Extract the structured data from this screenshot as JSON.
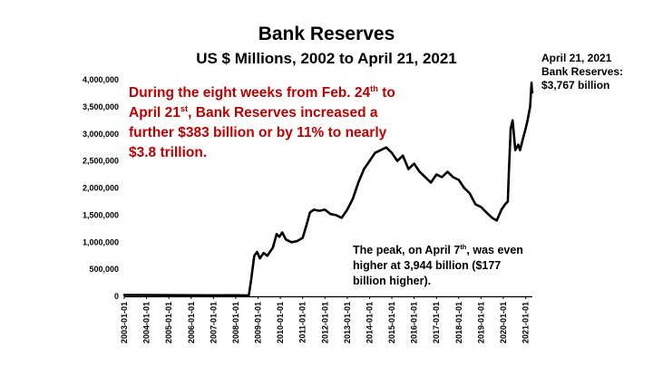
{
  "title": "Bank Reserves",
  "subtitle": "US $ Millions, 2002 to April 21, 2021",
  "side_note": {
    "line1": "April 21, 2021",
    "line2": "Bank Reserves:",
    "line3": "$3,767 billion"
  },
  "red_note": {
    "p1": "During the eight weeks from Feb. 24",
    "sup1": "th",
    "p2": "to April 21",
    "sup2": "st",
    "p3": ", Bank Reserves increased a further $383 billion or by 11% to nearly $3.8 trillion."
  },
  "peak_note": {
    "p1": "The peak, on April 7",
    "sup1": "th",
    "p2": ", was even higher at 3,944 billion ($177 billion higher)."
  },
  "colors": {
    "annotation_red": "#c00000",
    "line": "#000000"
  },
  "chart_data": {
    "type": "line",
    "title": "Bank Reserves",
    "subtitle": "US $ Millions, 2002 to April 21, 2021",
    "ylim": [
      0,
      4000000
    ],
    "yticks": [
      0,
      500000,
      1000000,
      1500000,
      2000000,
      2500000,
      3000000,
      3500000,
      4000000
    ],
    "ytick_labels": [
      "0",
      "500,000",
      "1,000,000",
      "1,500,000",
      "2,000,000",
      "2,500,000",
      "3,000,000",
      "3,500,000",
      "4,000,000"
    ],
    "xlim": [
      "2003-01-01",
      "2021-04-21"
    ],
    "xtick_labels": [
      "2003-01-01",
      "2004-01-01",
      "2005-01-01",
      "2006-01-01",
      "2007-01-01",
      "2008-01-01",
      "2009-01-01",
      "2010-01-01",
      "2011-01-01",
      "2012-01-01",
      "2013-01-01",
      "2014-01-01",
      "2015-01-01",
      "2016-01-01",
      "2017-01-01",
      "2018-01-01",
      "2019-01-01",
      "2020-01-01",
      "2021-01-01"
    ],
    "grid": false,
    "legend": "none",
    "series": [
      {
        "x": [
          "2003-01-01",
          "2004-01-01",
          "2005-01-01",
          "2006-01-01",
          "2007-01-01",
          "2008-01-01",
          "2008-08-01",
          "2008-09-10",
          "2008-10-01",
          "2008-11-01",
          "2008-12-15",
          "2009-02-01",
          "2009-04-01",
          "2009-06-01",
          "2009-09-01",
          "2009-11-01",
          "2009-12-15",
          "2010-02-01",
          "2010-04-01",
          "2010-07-01",
          "2010-10-01",
          "2011-01-01",
          "2011-03-01",
          "2011-05-01",
          "2011-07-01",
          "2011-10-01",
          "2012-01-01",
          "2012-04-01",
          "2012-07-01",
          "2012-10-01",
          "2013-01-01",
          "2013-04-01",
          "2013-07-01",
          "2013-10-01",
          "2014-01-01",
          "2014-04-01",
          "2014-07-01",
          "2014-10-01",
          "2015-01-01",
          "2015-04-01",
          "2015-07-01",
          "2015-10-01",
          "2016-01-01",
          "2016-04-01",
          "2016-07-01",
          "2016-10-01",
          "2017-01-01",
          "2017-04-01",
          "2017-07-01",
          "2017-10-01",
          "2018-01-01",
          "2018-04-01",
          "2018-07-01",
          "2018-10-01",
          "2019-01-01",
          "2019-04-01",
          "2019-07-01",
          "2019-09-15",
          "2019-12-01",
          "2020-02-01",
          "2020-03-15",
          "2020-04-01",
          "2020-05-01",
          "2020-06-01",
          "2020-07-15",
          "2020-09-01",
          "2020-10-01",
          "2020-11-15",
          "2021-01-01",
          "2021-02-01",
          "2021-02-24",
          "2021-03-15",
          "2021-04-07",
          "2021-04-14",
          "2021-04-21"
        ],
        "values": [
          25000,
          24000,
          22000,
          20000,
          18000,
          20000,
          15000,
          300000,
          500000,
          750000,
          820000,
          700000,
          800000,
          750000,
          900000,
          1150000,
          1100000,
          1180000,
          1050000,
          1000000,
          1020000,
          1080000,
          1300000,
          1550000,
          1600000,
          1580000,
          1600000,
          1520000,
          1500000,
          1450000,
          1600000,
          1800000,
          2100000,
          2350000,
          2500000,
          2650000,
          2700000,
          2750000,
          2650000,
          2500000,
          2600000,
          2350000,
          2450000,
          2300000,
          2200000,
          2100000,
          2250000,
          2200000,
          2300000,
          2200000,
          2150000,
          2000000,
          1900000,
          1700000,
          1650000,
          1550000,
          1450000,
          1400000,
          1600000,
          1700000,
          1750000,
          2300000,
          3100000,
          3250000,
          2700000,
          2800000,
          2700000,
          2900000,
          3100000,
          3250000,
          3384000,
          3500000,
          3944000,
          3800000,
          3767000
        ]
      }
    ]
  }
}
